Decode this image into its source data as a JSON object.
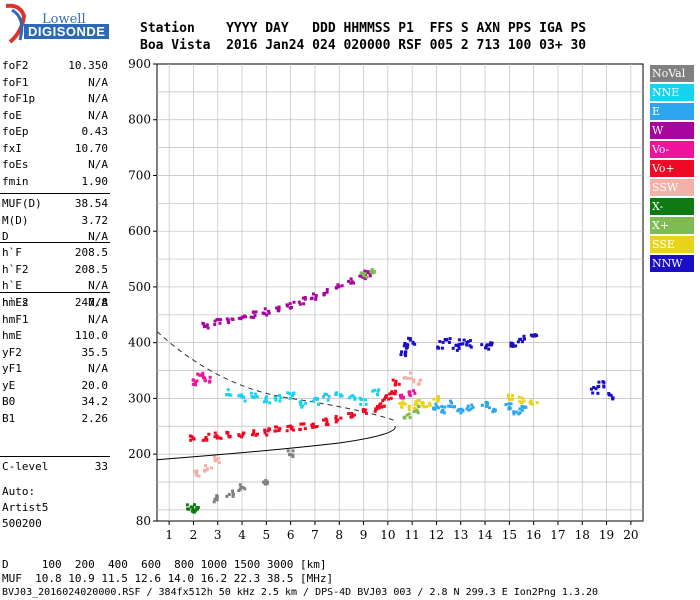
{
  "logo": {
    "top": "Lowell",
    "bottom": "DIGISONDE"
  },
  "header": {
    "row1": "Station    YYYY DAY   DDD HHMMSS P1  FFS S AXN PPS IGA PS",
    "row2": "Boa Vista  2016 Jan24 024 020000 RSF 005 2 713 100 03+ 30"
  },
  "params": [
    {
      "label": "foF2",
      "value": "10.350"
    },
    {
      "label": "foF1",
      "value": "N/A"
    },
    {
      "label": "foF1p",
      "value": "N/A"
    },
    {
      "label": "foE",
      "value": "N/A"
    },
    {
      "label": "foEp",
      "value": "0.43"
    },
    {
      "label": "fxI",
      "value": "10.70"
    },
    {
      "label": "foEs",
      "value": "N/A"
    },
    {
      "label": "fmin",
      "value": "1.90"
    },
    {
      "label": "MUF(D)",
      "value": "38.54"
    },
    {
      "label": "M(D)",
      "value": "3.72"
    },
    {
      "label": "D",
      "value": "N/A"
    },
    {
      "label": "h`F",
      "value": "208.5"
    },
    {
      "label": "h`F2",
      "value": "208.5"
    },
    {
      "label": "h`E",
      "value": "N/A"
    },
    {
      "label": "h`Es",
      "value": "N/A"
    },
    {
      "label": "hmF2",
      "value": "247.8"
    },
    {
      "label": "hmF1",
      "value": "N/A"
    },
    {
      "label": "hmE",
      "value": "110.0"
    },
    {
      "label": "yF2",
      "value": "35.5"
    },
    {
      "label": "yF1",
      "value": "N/A"
    },
    {
      "label": "yE",
      "value": "20.0"
    },
    {
      "label": "B0",
      "value": "34.2"
    },
    {
      "label": "B1",
      "value": "2.26"
    },
    {
      "label": "C-level",
      "value": "33"
    }
  ],
  "auto": {
    "line1": "Auto:",
    "line2": "Artist5",
    "line3": "500200"
  },
  "footer": {
    "line1": "D     100  200  400  600  800 1000 1500 3000 [km]",
    "line2": "MUF  10.8 10.9 11.5 12.6 14.0 16.2 22.3 38.5 [MHz]",
    "line3": "BVJ03_2016024020000.RSF / 384fx512h 50 kHz 2.5 km / DPS-4D BVJ03 003 / 2.8 N 299.3 E Ion2Png 1.3.20"
  },
  "legend": [
    {
      "label": "NoVal",
      "color": "#808080"
    },
    {
      "label": "NNE",
      "color": "#17d3f0"
    },
    {
      "label": "E",
      "color": "#2ba6ef"
    },
    {
      "label": "W",
      "color": "#a8049e"
    },
    {
      "label": "Vo-",
      "color": "#f0129a"
    },
    {
      "label": "Vo+",
      "color": "#ee0924"
    },
    {
      "label": "SSW",
      "color": "#f3b1a9"
    },
    {
      "label": "X-",
      "color": "#0f7a12"
    },
    {
      "label": "X+",
      "color": "#7fbb53"
    },
    {
      "label": "SSE",
      "color": "#e8d51a"
    },
    {
      "label": "NNW",
      "color": "#1b0dc6"
    }
  ],
  "chart_data": {
    "type": "scatter",
    "xlabel": "",
    "ylabel": "",
    "xlim": [
      0.5,
      20.5
    ],
    "ylim": [
      80,
      900
    ],
    "xticks": [
      1,
      2,
      3,
      4,
      5,
      6,
      7,
      8,
      9,
      10,
      11,
      12,
      13,
      14,
      15,
      16,
      17,
      18,
      19,
      20
    ],
    "yticks": [
      80,
      200,
      300,
      400,
      500,
      600,
      700,
      800,
      900
    ],
    "grid": true,
    "legend_position": "right",
    "traces": [
      {
        "name": "Vo+",
        "points": [
          [
            2.0,
            228
          ],
          [
            2.5,
            230
          ],
          [
            3.0,
            232
          ],
          [
            3.5,
            234
          ],
          [
            4.0,
            236
          ],
          [
            4.5,
            238
          ],
          [
            5.0,
            240
          ],
          [
            5.5,
            243
          ],
          [
            6.0,
            246
          ],
          [
            6.5,
            250
          ],
          [
            7.0,
            254
          ],
          [
            7.5,
            258
          ],
          [
            8.0,
            263
          ],
          [
            8.5,
            268
          ],
          [
            9.0,
            274
          ],
          [
            9.5,
            282
          ],
          [
            9.8,
            290
          ],
          [
            10.0,
            300
          ],
          [
            10.2,
            312
          ],
          [
            10.35,
            330
          ]
        ]
      },
      {
        "name": "W",
        "points": [
          [
            2.5,
            432
          ],
          [
            3.0,
            436
          ],
          [
            3.5,
            440
          ],
          [
            4.0,
            445
          ],
          [
            4.5,
            450
          ],
          [
            5.0,
            455
          ],
          [
            5.5,
            462
          ],
          [
            6.0,
            468
          ],
          [
            6.5,
            475
          ],
          [
            7.0,
            482
          ],
          [
            7.5,
            490
          ],
          [
            8.0,
            500
          ],
          [
            8.5,
            510
          ],
          [
            9.0,
            520
          ],
          [
            9.2,
            525
          ]
        ]
      },
      {
        "name": "NNW",
        "points": [
          [
            10.6,
            380
          ],
          [
            10.8,
            395
          ],
          [
            11.0,
            402
          ],
          [
            12.2,
            396
          ],
          [
            12.5,
            405
          ],
          [
            12.8,
            392
          ],
          [
            13.0,
            400
          ],
          [
            13.3,
            398
          ],
          [
            14.0,
            393
          ],
          [
            14.3,
            400
          ],
          [
            15.2,
            398
          ],
          [
            15.5,
            406
          ],
          [
            16.0,
            410
          ],
          [
            18.5,
            315
          ],
          [
            18.8,
            325
          ],
          [
            19.2,
            305
          ]
        ]
      },
      {
        "name": "E",
        "points": [
          [
            12.0,
            285
          ],
          [
            12.3,
            280
          ],
          [
            12.6,
            290
          ],
          [
            13.0,
            275
          ],
          [
            13.4,
            283
          ],
          [
            14.0,
            290
          ],
          [
            14.3,
            280
          ],
          [
            15.0,
            285
          ],
          [
            15.3,
            278
          ],
          [
            15.6,
            284
          ]
        ]
      },
      {
        "name": "NNE",
        "points": [
          [
            3.5,
            310
          ],
          [
            4.0,
            300
          ],
          [
            4.5,
            305
          ],
          [
            5.0,
            298
          ],
          [
            5.5,
            300
          ],
          [
            6.0,
            305
          ],
          [
            6.5,
            290
          ],
          [
            7.0,
            295
          ],
          [
            7.5,
            302
          ],
          [
            8.0,
            310
          ],
          [
            8.5,
            300
          ],
          [
            9.0,
            295
          ],
          [
            9.5,
            310
          ]
        ]
      },
      {
        "name": "SSE",
        "points": [
          [
            10.6,
            290
          ],
          [
            11.0,
            285
          ],
          [
            11.3,
            292
          ],
          [
            11.6,
            288
          ],
          [
            12.0,
            300
          ],
          [
            15.0,
            302
          ],
          [
            15.5,
            298
          ],
          [
            16.0,
            295
          ]
        ]
      },
      {
        "name": "X+",
        "points": [
          [
            9.0,
            520
          ],
          [
            9.3,
            528
          ],
          [
            10.8,
            270
          ],
          [
            11.2,
            280
          ]
        ]
      },
      {
        "name": "Vo-",
        "points": [
          [
            2.0,
            330
          ],
          [
            2.3,
            340
          ],
          [
            2.6,
            335
          ],
          [
            10.5,
            300
          ],
          [
            11.0,
            310
          ]
        ]
      },
      {
        "name": "SSW",
        "points": [
          [
            2.2,
            165
          ],
          [
            2.6,
            175
          ],
          [
            3.0,
            190
          ],
          [
            10.8,
            340
          ],
          [
            11.2,
            330
          ]
        ]
      },
      {
        "name": "X-",
        "points": [
          [
            1.9,
            105
          ],
          [
            2.0,
            100
          ],
          [
            2.1,
            102
          ]
        ]
      },
      {
        "name": "NoVal",
        "points": [
          [
            3.0,
            120
          ],
          [
            3.5,
            130
          ],
          [
            4.0,
            140
          ],
          [
            5.0,
            150
          ],
          [
            6.0,
            200
          ]
        ]
      }
    ]
  }
}
